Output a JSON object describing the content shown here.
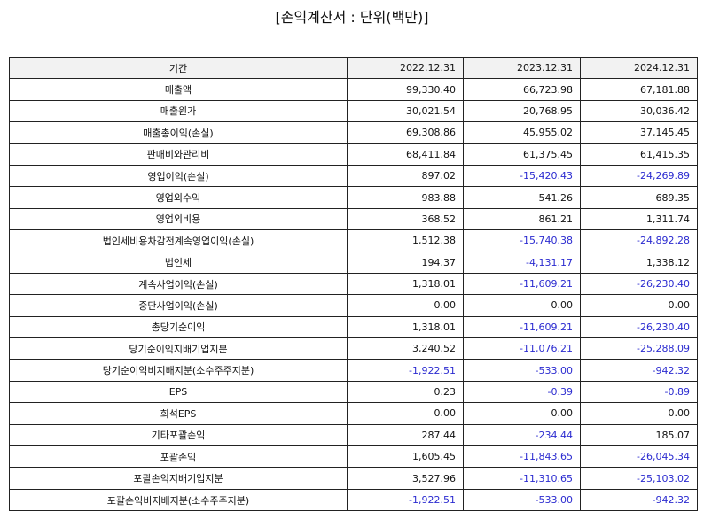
{
  "title": "[손익계산서 : 단위(백만)]",
  "table": {
    "header": [
      "기간",
      "2022.12.31",
      "2023.12.31",
      "2024.12.31"
    ],
    "rows": [
      [
        "매출액",
        "99,330.40",
        "66,723.98",
        "67,181.88"
      ],
      [
        "매출원가",
        "30,021.54",
        "20,768.95",
        "30,036.42"
      ],
      [
        "매출총이익(손실)",
        "69,308.86",
        "45,955.02",
        "37,145.45"
      ],
      [
        "판매비와관리비",
        "68,411.84",
        "61,375.45",
        "61,415.35"
      ],
      [
        "영업이익(손실)",
        "897.02",
        "-15,420.43",
        "-24,269.89"
      ],
      [
        "영업외수익",
        "983.88",
        "541.26",
        "689.35"
      ],
      [
        "영업외비용",
        "368.52",
        "861.21",
        "1,311.74"
      ],
      [
        "법인세비용차감전계속영업이익(손실)",
        "1,512.38",
        "-15,740.38",
        "-24,892.28"
      ],
      [
        "법인세",
        "194.37",
        "-4,131.17",
        "1,338.12"
      ],
      [
        "계속사업이익(손실)",
        "1,318.01",
        "-11,609.21",
        "-26,230.40"
      ],
      [
        "중단사업이익(손실)",
        "0.00",
        "0.00",
        "0.00"
      ],
      [
        "총당기순이익",
        "1,318.01",
        "-11,609.21",
        "-26,230.40"
      ],
      [
        "당기순이익지배기업지분",
        "3,240.52",
        "-11,076.21",
        "-25,288.09"
      ],
      [
        "당기순이익비지배지분(소수주주지분)",
        "-1,922.51",
        "-533.00",
        "-942.32"
      ],
      [
        "EPS",
        "0.23",
        "-0.39",
        "-0.89"
      ],
      [
        "희석EPS",
        "0.00",
        "0.00",
        "0.00"
      ],
      [
        "기타포괄손익",
        "287.44",
        "-234.44",
        "185.07"
      ],
      [
        "포괄손익",
        "1,605.45",
        "-11,843.65",
        "-26,045.34"
      ],
      [
        "포괄손익지배기업지분",
        "3,527.96",
        "-11,310.65",
        "-25,103.02"
      ],
      [
        "포괄손익비지배지분(소수주주지분)",
        "-1,922.51",
        "-533.00",
        "-942.32"
      ]
    ]
  }
}
